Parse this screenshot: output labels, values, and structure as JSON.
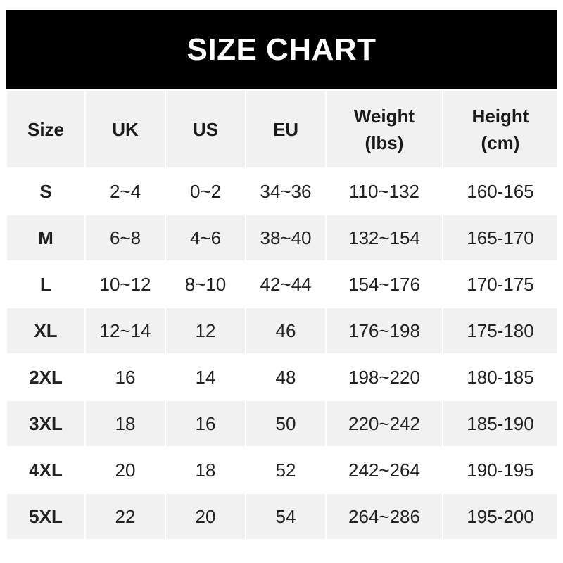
{
  "title": "SIZE CHART",
  "headers": [
    [
      "Size"
    ],
    [
      "UK"
    ],
    [
      "US"
    ],
    [
      "EU"
    ],
    [
      "Weight",
      "(lbs)"
    ],
    [
      "Height",
      "(cm)"
    ]
  ],
  "rows": [
    [
      "S",
      "2~4",
      "0~2",
      "34~36",
      "110~132",
      "160-165"
    ],
    [
      "M",
      "6~8",
      "4~6",
      "38~40",
      "132~154",
      "165-170"
    ],
    [
      "L",
      "10~12",
      "8~10",
      "42~44",
      "154~176",
      "170-175"
    ],
    [
      "XL",
      "12~14",
      "12",
      "46",
      "176~198",
      "175-180"
    ],
    [
      "2XL",
      "16",
      "14",
      "48",
      "198~220",
      "180-185"
    ],
    [
      "3XL",
      "18",
      "16",
      "50",
      "220~242",
      "185-190"
    ],
    [
      "4XL",
      "20",
      "18",
      "52",
      "242~264",
      "190-195"
    ],
    [
      "5XL",
      "22",
      "20",
      "54",
      "264~286",
      "195-200"
    ]
  ],
  "colors": {
    "title_bg": "#000000",
    "title_text": "#ffffff",
    "stripe": "#f1f1f1"
  }
}
